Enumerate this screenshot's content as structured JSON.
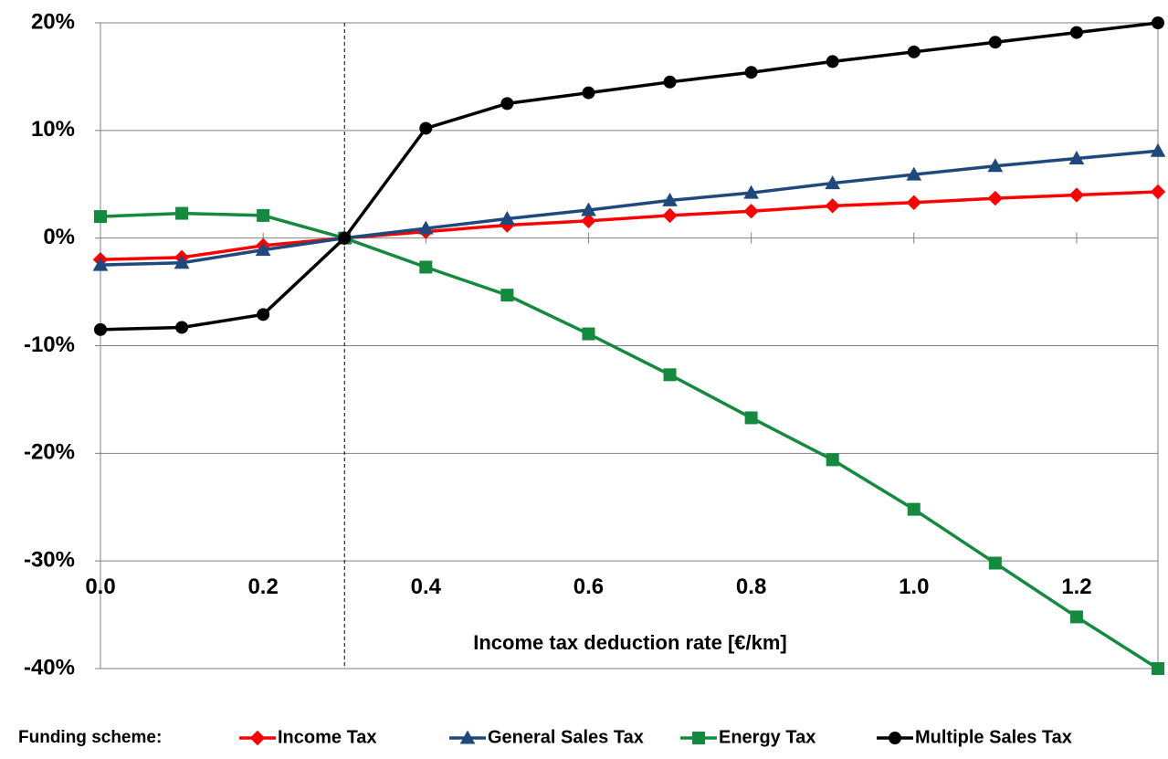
{
  "chart_data": {
    "type": "line",
    "x_label": "Income tax deduction rate [€/km]",
    "legend_title": "Funding scheme:",
    "x": [
      0.0,
      0.1,
      0.2,
      0.3,
      0.4,
      0.5,
      0.6,
      0.7,
      0.8,
      0.9,
      1.0,
      1.1,
      1.2,
      1.3
    ],
    "series": [
      {
        "name": "Income Tax",
        "color": "#ff0000",
        "marker": "diamond",
        "values": [
          -2.0,
          -1.8,
          -0.7,
          0,
          0.6,
          1.2,
          1.6,
          2.1,
          2.5,
          3.0,
          3.3,
          3.7,
          4.0,
          4.3
        ]
      },
      {
        "name": "General Sales Tax",
        "color": "#1f497d",
        "marker": "triangle",
        "values": [
          -2.5,
          -2.3,
          -1.1,
          0,
          0.9,
          1.8,
          2.6,
          3.5,
          4.2,
          5.1,
          5.9,
          6.7,
          7.4,
          8.1
        ]
      },
      {
        "name": "Energy Tax",
        "color": "#138a3e",
        "marker": "square",
        "values": [
          2.0,
          2.3,
          2.1,
          0,
          -2.7,
          -5.3,
          -8.9,
          -12.7,
          -16.7,
          -20.6,
          -25.2,
          -30.2,
          -35.2,
          -40.0
        ]
      },
      {
        "name": "Multiple Sales Tax",
        "color": "#000000",
        "marker": "circle",
        "values": [
          -8.5,
          -8.3,
          -7.1,
          0,
          10.2,
          12.5,
          13.5,
          14.5,
          15.4,
          16.4,
          17.3,
          18.2,
          19.1,
          20.0
        ]
      }
    ],
    "xlim": [
      0,
      1.3
    ],
    "ylim": [
      -40,
      20
    ],
    "xticks": [
      {
        "value": 0,
        "label": "0.0"
      },
      {
        "value": 0.2,
        "label": "0.2"
      },
      {
        "value": 0.4,
        "label": "0.4"
      },
      {
        "value": 0.6,
        "label": "0.6"
      },
      {
        "value": 0.8,
        "label": "0.8"
      },
      {
        "value": 1.0,
        "label": "1.0"
      },
      {
        "value": 1.2,
        "label": "1.2"
      }
    ],
    "yticks": [
      {
        "value": -40,
        "label": "-40%"
      },
      {
        "value": -30,
        "label": "-30%"
      },
      {
        "value": -20,
        "label": "-20%"
      },
      {
        "value": -10,
        "label": "-10%"
      },
      {
        "value": 0,
        "label": "0%"
      },
      {
        "value": 10,
        "label": "10%"
      },
      {
        "value": 20,
        "label": "20%"
      }
    ],
    "reference_line_x": 0.3,
    "grid": true
  }
}
